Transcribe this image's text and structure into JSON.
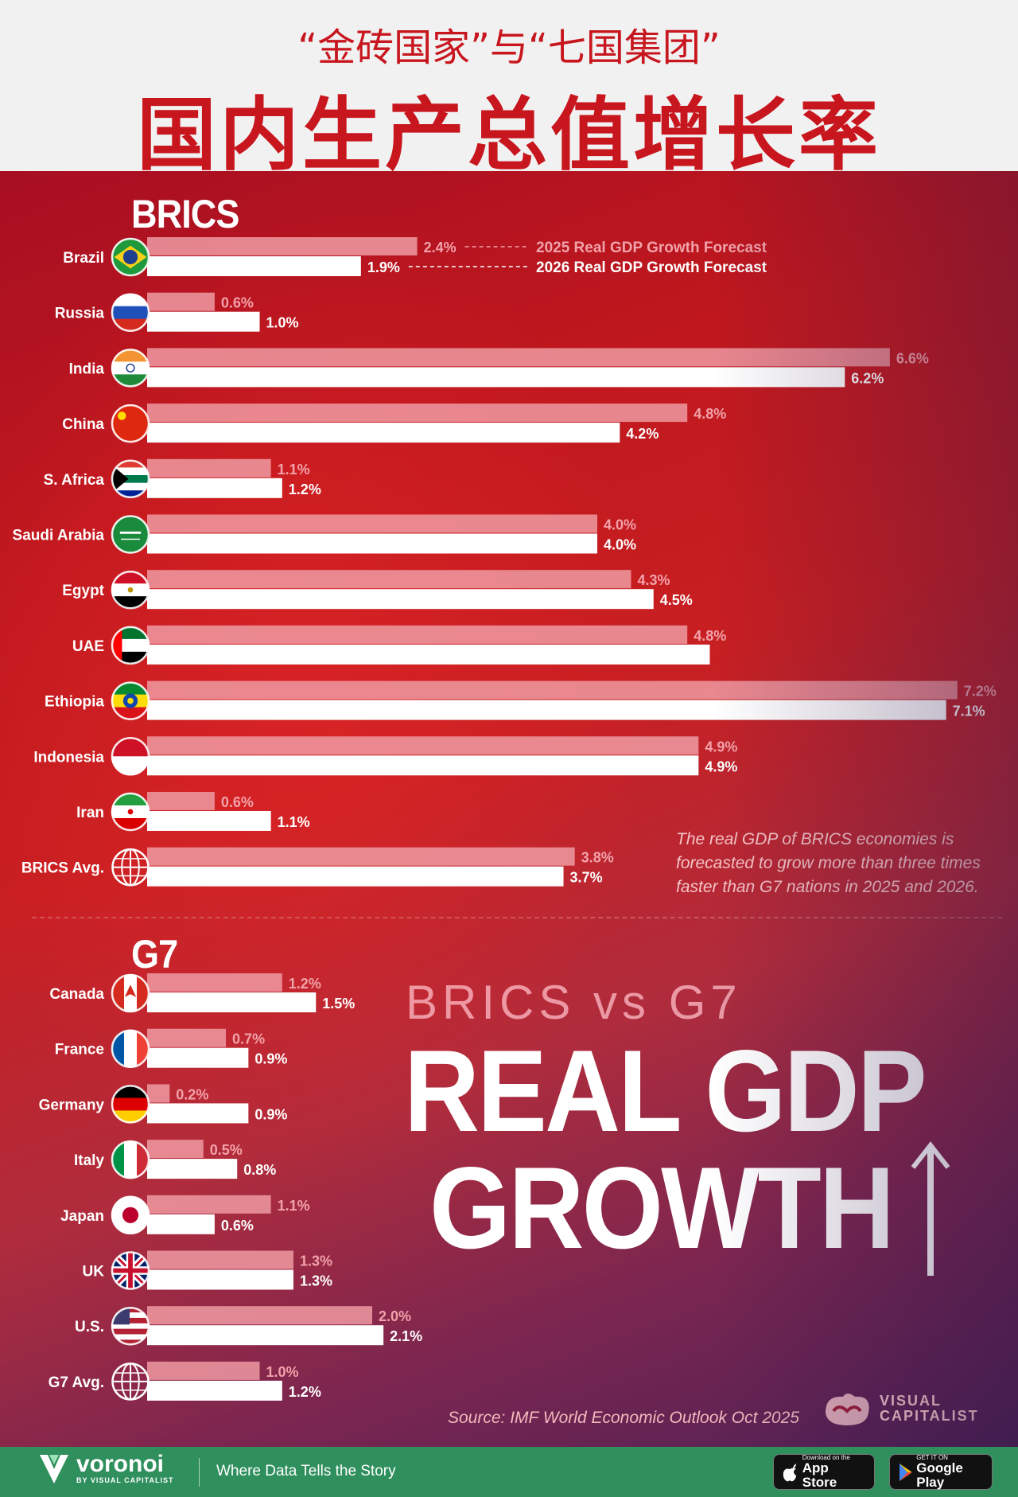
{
  "header": {
    "subtitle": "“金砖国家”与“七国集团”",
    "title": "国内生产总值增长率"
  },
  "sections": {
    "brics_label": "BRICS",
    "g7_label": "G7"
  },
  "legend": {
    "label_2025": "2025 Real GDP Growth Forecast",
    "label_2026": "2026 Real GDP Growth Forecast"
  },
  "note": "The real GDP of BRICS economies is forecasted to grow more than three times faster than G7 nations in 2025 and 2026.",
  "headline": {
    "line1": "BRICS vs G7",
    "line2": "REAL GDP",
    "line3": "GROWTH"
  },
  "source": "Source: IMF World Economic Outlook Oct 2025",
  "brand": {
    "vc_line1": "VISUAL",
    "vc_line2": "CAPITALIST",
    "voronoi_name": "voronoi",
    "voronoi_sub": "BY VISUAL CAPITALIST",
    "tagline": "Where Data Tells the Story",
    "appstore_small": "Download on the",
    "appstore_big": "App Store",
    "googleplay_small": "GET IT ON",
    "googleplay_big": "Google Play"
  },
  "colors": {
    "bar_2025": "#ee9aa2",
    "bar_2026": "#ffffff",
    "header_red": "#c8161e",
    "footer_green": "#2f8f5d"
  },
  "chart_data": {
    "type": "bar",
    "orientation": "horizontal",
    "title": "BRICS vs G7 Real GDP Growth",
    "unit": "%",
    "series": [
      {
        "name": "2025 Real GDP Growth Forecast"
      },
      {
        "name": "2026 Real GDP Growth Forecast"
      }
    ],
    "groups": [
      {
        "name": "BRICS",
        "rows": [
          {
            "country": "Brazil",
            "flag": "brazil-flag-icon",
            "v2025": 2.4,
            "v2026": 1.9
          },
          {
            "country": "Russia",
            "flag": "russia-flag-icon",
            "v2025": 0.6,
            "v2026": 1.0
          },
          {
            "country": "India",
            "flag": "india-flag-icon",
            "v2025": 6.6,
            "v2026": 6.2
          },
          {
            "country": "China",
            "flag": "china-flag-icon",
            "v2025": 4.8,
            "v2026": 4.2
          },
          {
            "country": "S. Africa",
            "flag": "south-africa-flag-icon",
            "v2025": 1.1,
            "v2026": 1.2
          },
          {
            "country": "Saudi Arabia",
            "flag": "saudi-arabia-flag-icon",
            "v2025": 4.0,
            "v2026": 4.0
          },
          {
            "country": "Egypt",
            "flag": "egypt-flag-icon",
            "v2025": 4.3,
            "v2026": 4.5
          },
          {
            "country": "UAE",
            "flag": "uae-flag-icon",
            "v2025": 4.8,
            "v2026": 5.0
          },
          {
            "country": "Ethiopia",
            "flag": "ethiopia-flag-icon",
            "v2025": 7.2,
            "v2026": 7.1
          },
          {
            "country": "Indonesia",
            "flag": "indonesia-flag-icon",
            "v2025": 4.9,
            "v2026": 4.9
          },
          {
            "country": "Iran",
            "flag": "iran-flag-icon",
            "v2025": 0.6,
            "v2026": 1.1
          },
          {
            "country": "BRICS Avg.",
            "flag": "globe-icon",
            "v2025": 3.8,
            "v2026": 3.7
          }
        ]
      },
      {
        "name": "G7",
        "rows": [
          {
            "country": "Canada",
            "flag": "canada-flag-icon",
            "v2025": 1.2,
            "v2026": 1.5
          },
          {
            "country": "France",
            "flag": "france-flag-icon",
            "v2025": 0.7,
            "v2026": 0.9
          },
          {
            "country": "Germany",
            "flag": "germany-flag-icon",
            "v2025": 0.2,
            "v2026": 0.9
          },
          {
            "country": "Italy",
            "flag": "italy-flag-icon",
            "v2025": 0.5,
            "v2026": 0.8
          },
          {
            "country": "Japan",
            "flag": "japan-flag-icon",
            "v2025": 1.1,
            "v2026": 0.6
          },
          {
            "country": "UK",
            "flag": "uk-flag-icon",
            "v2025": 1.3,
            "v2026": 1.3
          },
          {
            "country": "U.S.",
            "flag": "us-flag-icon",
            "v2025": 2.0,
            "v2026": 2.1
          },
          {
            "country": "G7 Avg.",
            "flag": "globe-icon",
            "v2025": 1.0,
            "v2026": 1.2
          }
        ]
      }
    ],
    "hidden_labels": [
      "UAE:2026"
    ]
  }
}
